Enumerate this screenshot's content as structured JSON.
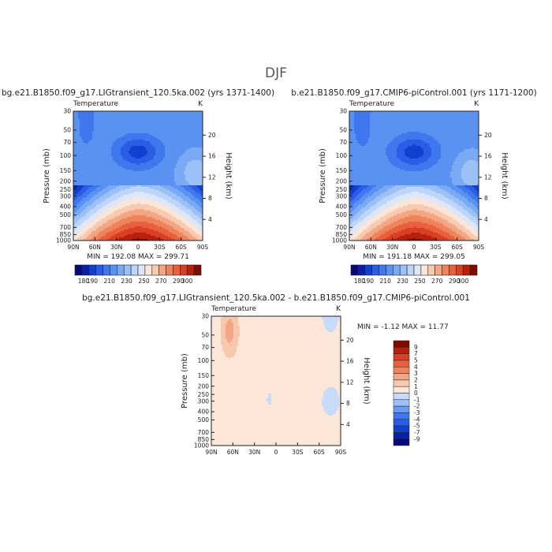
{
  "figure_title": "DJF",
  "colors": {
    "abs_palette": [
      "#08087a",
      "#0b1fa8",
      "#1040d0",
      "#2a5ce6",
      "#3f78ee",
      "#5a92f2",
      "#7aaaf4",
      "#9cc1f6",
      "#bcd5f8",
      "#dce8fa",
      "#fce6d8",
      "#f8cab2",
      "#f3a683",
      "#ef835c",
      "#e8603c",
      "#d83f24",
      "#b8200c",
      "#7e0a00"
    ],
    "diff_palette": [
      "#08087a",
      "#0b1fa8",
      "#1040d0",
      "#2a5ce6",
      "#3f78ee",
      "#6a9af2",
      "#9cc1f6",
      "#c8dbfa",
      "#ffffff",
      "#fce6d8",
      "#f8c8ae",
      "#f3a683",
      "#ef835c",
      "#e8603c",
      "#d83f24",
      "#b8200c",
      "#7e0a00"
    ]
  },
  "chart_data": [
    {
      "type": "heatmap",
      "title": "bg.e21.B1850.f09_g17.LIGtransient_120.5ka.002 (yrs 1371-1400)",
      "left_string": "Temperature",
      "right_string": "K",
      "ylabel": "Pressure (mb)",
      "ylabel_right": "Height (km)",
      "x_ticks": [
        "90N",
        "60N",
        "30N",
        "0",
        "30S",
        "60S",
        "90S"
      ],
      "y_ticks": [
        "30",
        "50",
        "70",
        "100",
        "150",
        "200",
        "250",
        "300",
        "400",
        "500",
        "700",
        "850",
        "1000"
      ],
      "y_ticks_right": [
        "20",
        "16",
        "12",
        "8",
        "4"
      ],
      "ylim_mb": [
        1000,
        30
      ],
      "log_y": true,
      "stats": "MIN = 192.08   MAX = 299.71",
      "levels": [
        "180",
        "190",
        "200",
        "210",
        "220",
        "230",
        "240",
        "250",
        "260",
        "270",
        "280",
        "290",
        "300"
      ],
      "colorbar_labels": [
        "180",
        "190",
        "200",
        "210",
        "220",
        "230",
        "240",
        "250",
        "260",
        "270",
        "280",
        "290",
        "300"
      ]
    },
    {
      "type": "heatmap",
      "title": "b.e21.B1850.f09_g17.CMIP6-piControl.001 (yrs 1171-1200)",
      "left_string": "Temperature",
      "right_string": "K",
      "ylabel": "Pressure (mb)",
      "ylabel_right": "Height (km)",
      "x_ticks": [
        "90N",
        "60N",
        "30N",
        "0",
        "30S",
        "60S",
        "90S"
      ],
      "y_ticks": [
        "30",
        "50",
        "70",
        "100",
        "150",
        "200",
        "250",
        "300",
        "400",
        "500",
        "700",
        "850",
        "1000"
      ],
      "y_ticks_right": [
        "20",
        "16",
        "12",
        "8",
        "4"
      ],
      "ylim_mb": [
        1000,
        30
      ],
      "log_y": true,
      "stats": "MIN = 191.18   MAX = 299.05",
      "levels": [
        "180",
        "190",
        "200",
        "210",
        "220",
        "230",
        "240",
        "250",
        "260",
        "270",
        "280",
        "290",
        "300"
      ],
      "colorbar_labels": [
        "180",
        "190",
        "200",
        "210",
        "220",
        "230",
        "240",
        "250",
        "260",
        "270",
        "280",
        "290",
        "300"
      ]
    },
    {
      "type": "heatmap",
      "title": "bg.e21.B1850.f09_g17.LIGtransient_120.5ka.002 - b.e21.B1850.f09_g17.CMIP6-piControl.001",
      "left_string": "Temperature",
      "right_string": "K",
      "ylabel": "Pressure (mb)",
      "ylabel_right": "Height (km)",
      "x_ticks": [
        "90N",
        "60N",
        "30N",
        "0",
        "30S",
        "60S",
        "90S"
      ],
      "y_ticks": [
        "30",
        "50",
        "70",
        "100",
        "150",
        "200",
        "250",
        "300",
        "400",
        "500",
        "700",
        "850",
        "1000"
      ],
      "y_ticks_right": [
        "20",
        "16",
        "12",
        "8",
        "4"
      ],
      "ylim_mb": [
        1000,
        30
      ],
      "log_y": true,
      "stats": "MIN =  -1.12   MAX =  11.77",
      "colorbar_labels": [
        "9",
        "7",
        "5",
        "4",
        "3",
        "2",
        "1",
        "0",
        "-1",
        "-2",
        "-3",
        "-4",
        "-5",
        "-7",
        "-9"
      ]
    }
  ]
}
